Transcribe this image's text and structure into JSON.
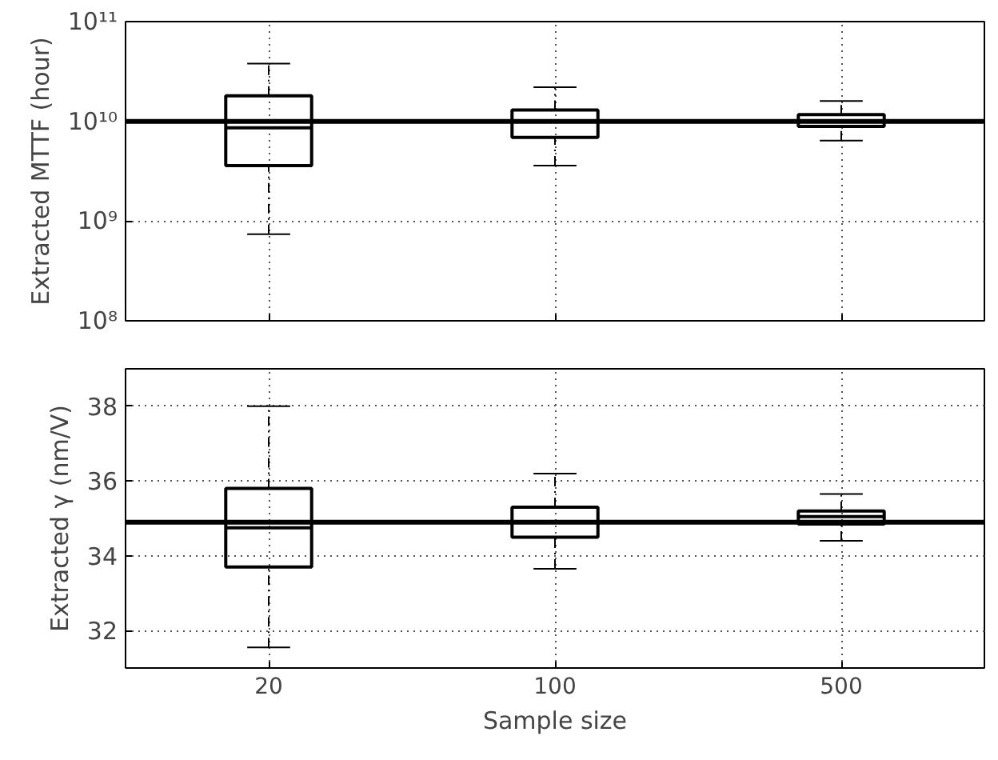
{
  "chart_data": [
    {
      "type": "box",
      "ylabel": "Extracted MTTF (hour)",
      "categories": [
        "20",
        "100",
        "500"
      ],
      "log": true,
      "ylim": [
        100000000.0,
        100000000000.0
      ],
      "yticks": [
        {
          "value": 100000000.0,
          "label": "10⁸"
        },
        {
          "value": 1000000000.0,
          "label": "10⁹"
        },
        {
          "value": 10000000000.0,
          "label": "10¹⁰"
        },
        {
          "value": 100000000000.0,
          "label": "10¹¹"
        }
      ],
      "boxes": [
        {
          "low": 740000000.0,
          "q1": 3600000000.0,
          "median": 8600000000.0,
          "q3": 18000000000.0,
          "high": 38000000000.0
        },
        {
          "low": 3600000000.0,
          "q1": 6900000000.0,
          "median": 10000000000.0,
          "q3": 13000000000.0,
          "high": 22000000000.0
        },
        {
          "low": 6400000000.0,
          "q1": 8900000000.0,
          "median": 10000000000.0,
          "q3": 11700000000.0,
          "high": 16000000000.0
        }
      ],
      "ref_lines": [
        {
          "axis": "y",
          "value": 10000000000.0,
          "color": "#000000"
        }
      ],
      "grid": true,
      "tick_labels": "y"
    },
    {
      "type": "box",
      "xlabel": "Sample size",
      "ylabel": "Extracted γ (nm/V)",
      "categories": [
        "20",
        "100",
        "500"
      ],
      "ylim": [
        31,
        39
      ],
      "yticks": [
        32,
        34,
        36,
        38
      ],
      "boxes": [
        {
          "low": 31.55,
          "q1": 33.7,
          "median": 34.75,
          "q3": 35.8,
          "high": 38.0
        },
        {
          "low": 33.65,
          "q1": 34.5,
          "median": 34.9,
          "q3": 35.3,
          "high": 36.2
        },
        {
          "low": 34.4,
          "q1": 34.85,
          "median": 35.05,
          "q3": 35.2,
          "high": 35.65
        }
      ],
      "ref_lines": [
        {
          "axis": "y",
          "value": 34.9,
          "color": "#000000"
        }
      ],
      "grid": true
    }
  ]
}
